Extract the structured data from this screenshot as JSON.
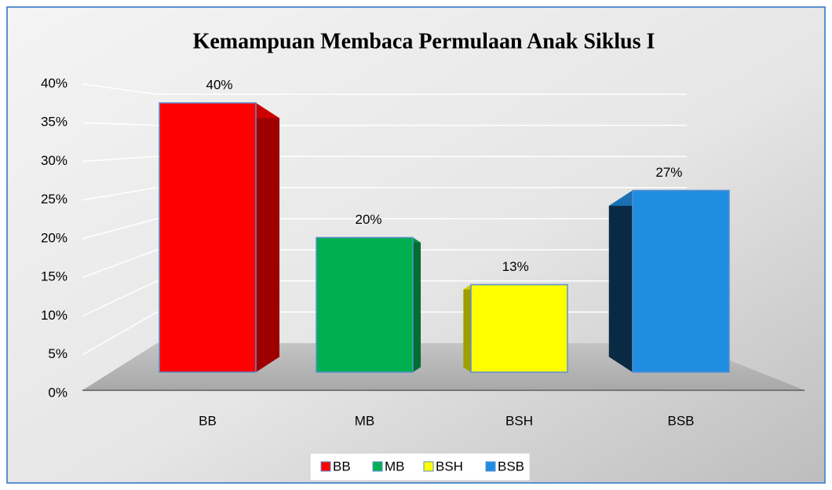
{
  "chart_data": {
    "type": "bar3d",
    "title": "Kemampuan Membaca Permulaan Anak Siklus I",
    "categories": [
      "BB",
      "MB",
      "BSH",
      "BSB"
    ],
    "values": [
      40,
      20,
      13,
      27
    ],
    "value_labels": [
      "40%",
      "20%",
      "13%",
      "27%"
    ],
    "colors": [
      "#ff0000",
      "#00b050",
      "#ffff00",
      "#1f8de0"
    ],
    "ylim": [
      0,
      40
    ],
    "yticks": [
      {
        "value": 0,
        "label": "0%"
      },
      {
        "value": 5,
        "label": "5%"
      },
      {
        "value": 10,
        "label": "10%"
      },
      {
        "value": 15,
        "label": "15%"
      },
      {
        "value": 20,
        "label": "20%"
      },
      {
        "value": 25,
        "label": "25%"
      },
      {
        "value": 30,
        "label": "30%"
      },
      {
        "value": 35,
        "label": "35%"
      },
      {
        "value": 40,
        "label": "40%"
      }
    ],
    "grid": true,
    "legend": "bottom"
  }
}
